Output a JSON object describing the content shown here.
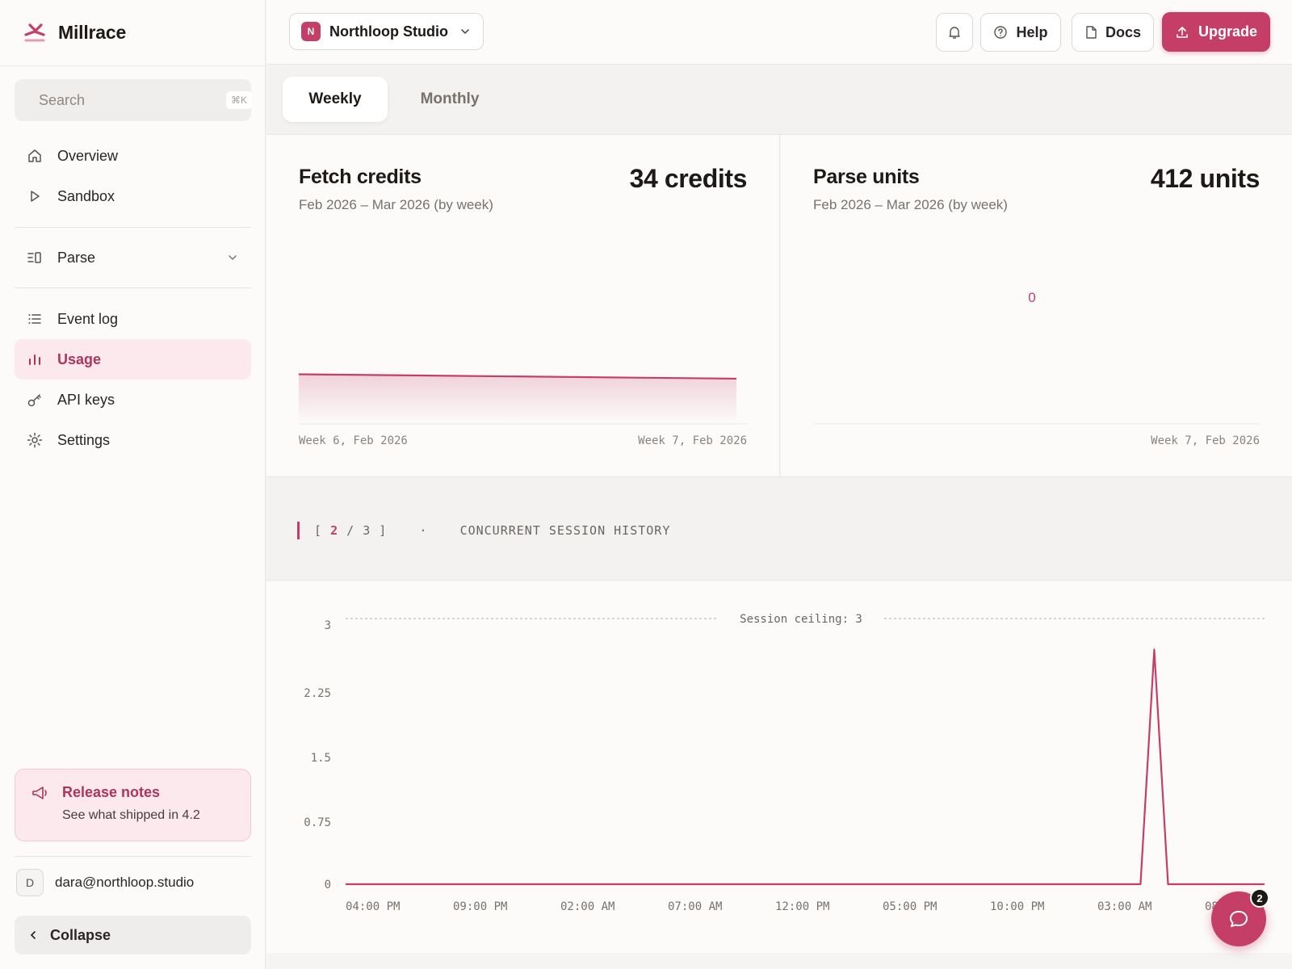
{
  "app": {
    "name": "Millrace"
  },
  "search": {
    "placeholder": "Search",
    "shortcut": "⌘K"
  },
  "sidebar": {
    "items": [
      {
        "label": "Overview",
        "icon": "home-icon"
      },
      {
        "label": "Sandbox",
        "icon": "play-icon"
      },
      {
        "label": "Parse",
        "icon": "parse-icon",
        "expandable": true
      },
      {
        "label": "Event log",
        "icon": "list-icon"
      },
      {
        "label": "Usage",
        "icon": "bar-chart-icon",
        "active": true
      },
      {
        "label": "API keys",
        "icon": "key-icon"
      },
      {
        "label": "Settings",
        "icon": "gear-icon"
      }
    ],
    "release": {
      "title": "Release notes",
      "subtitle": "See what shipped in 4.2"
    },
    "user": {
      "initial": "D",
      "email": "dara@northloop.studio"
    },
    "collapse_label": "Collapse"
  },
  "topbar": {
    "workspace": {
      "initial": "N",
      "name": "Northloop Studio"
    },
    "help_label": "Help",
    "docs_label": "Docs",
    "upgrade_label": "Upgrade"
  },
  "tabs": [
    {
      "label": "Weekly",
      "active": true
    },
    {
      "label": "Monthly",
      "active": false
    }
  ],
  "cards": {
    "fetch": {
      "title": "Fetch credits",
      "subtitle": "Feb 2026 – Mar 2026 (by week)",
      "value": "34 credits",
      "x_start": "Week 6, Feb 2026",
      "x_end": "Week 7, Feb 2026"
    },
    "parse": {
      "title": "Parse units",
      "subtitle": "Feb 2026 – Mar 2026 (by week)",
      "value": "412 units",
      "x_end": "Week 7, Feb 2026"
    }
  },
  "session": {
    "page_open": "[",
    "page_current": "2",
    "page_sep": "/",
    "page_total": "3",
    "page_close": "]",
    "dot": "·",
    "title": "CONCURRENT SESSION HISTORY"
  },
  "chat": {
    "badge": "2"
  },
  "colors": {
    "accent": "#c43e68",
    "accent_soft": "#fbe9ee",
    "sidebar_bg": "#fcfbfa"
  },
  "chart_data": [
    {
      "type": "area",
      "title": "Fetch credits",
      "x": [
        "Week 6, Feb 2026",
        "Week 7, Feb 2026"
      ],
      "series": [
        {
          "values": [
            34,
            31
          ]
        }
      ],
      "grid": false
    },
    {
      "type": "scatter",
      "title": "Parse units",
      "x": [
        "Week 7, Feb 2026"
      ],
      "series": [
        {
          "values": [
            0
          ]
        }
      ],
      "point_label": "0",
      "grid": false
    },
    {
      "type": "line",
      "title": "CONCURRENT SESSION HISTORY",
      "x_ticks": [
        "04:00 PM",
        "09:00 PM",
        "02:00 AM",
        "07:00 AM",
        "12:00 PM",
        "05:00 PM",
        "10:00 PM",
        "03:00 AM",
        "08:00 AM"
      ],
      "y_ticks": [
        "0",
        "0.75",
        "1.5",
        "2.25",
        "3"
      ],
      "ylim": [
        0,
        3
      ],
      "reference_line": {
        "label": "Session ceiling: 3",
        "value": 3
      },
      "series": [
        {
          "x_hours": [
            0,
            2,
            4,
            6,
            8,
            10,
            12,
            14,
            16,
            18,
            20,
            22,
            24,
            26,
            28,
            30,
            32,
            34,
            34.6,
            35.2,
            35.8,
            36,
            38,
            40
          ],
          "values": [
            0,
            0,
            0,
            0,
            0,
            0,
            0,
            0,
            0,
            0,
            0,
            0,
            0,
            0,
            0,
            0,
            0,
            0,
            0,
            2.65,
            0,
            0,
            0,
            0
          ]
        }
      ],
      "grid": false
    }
  ]
}
